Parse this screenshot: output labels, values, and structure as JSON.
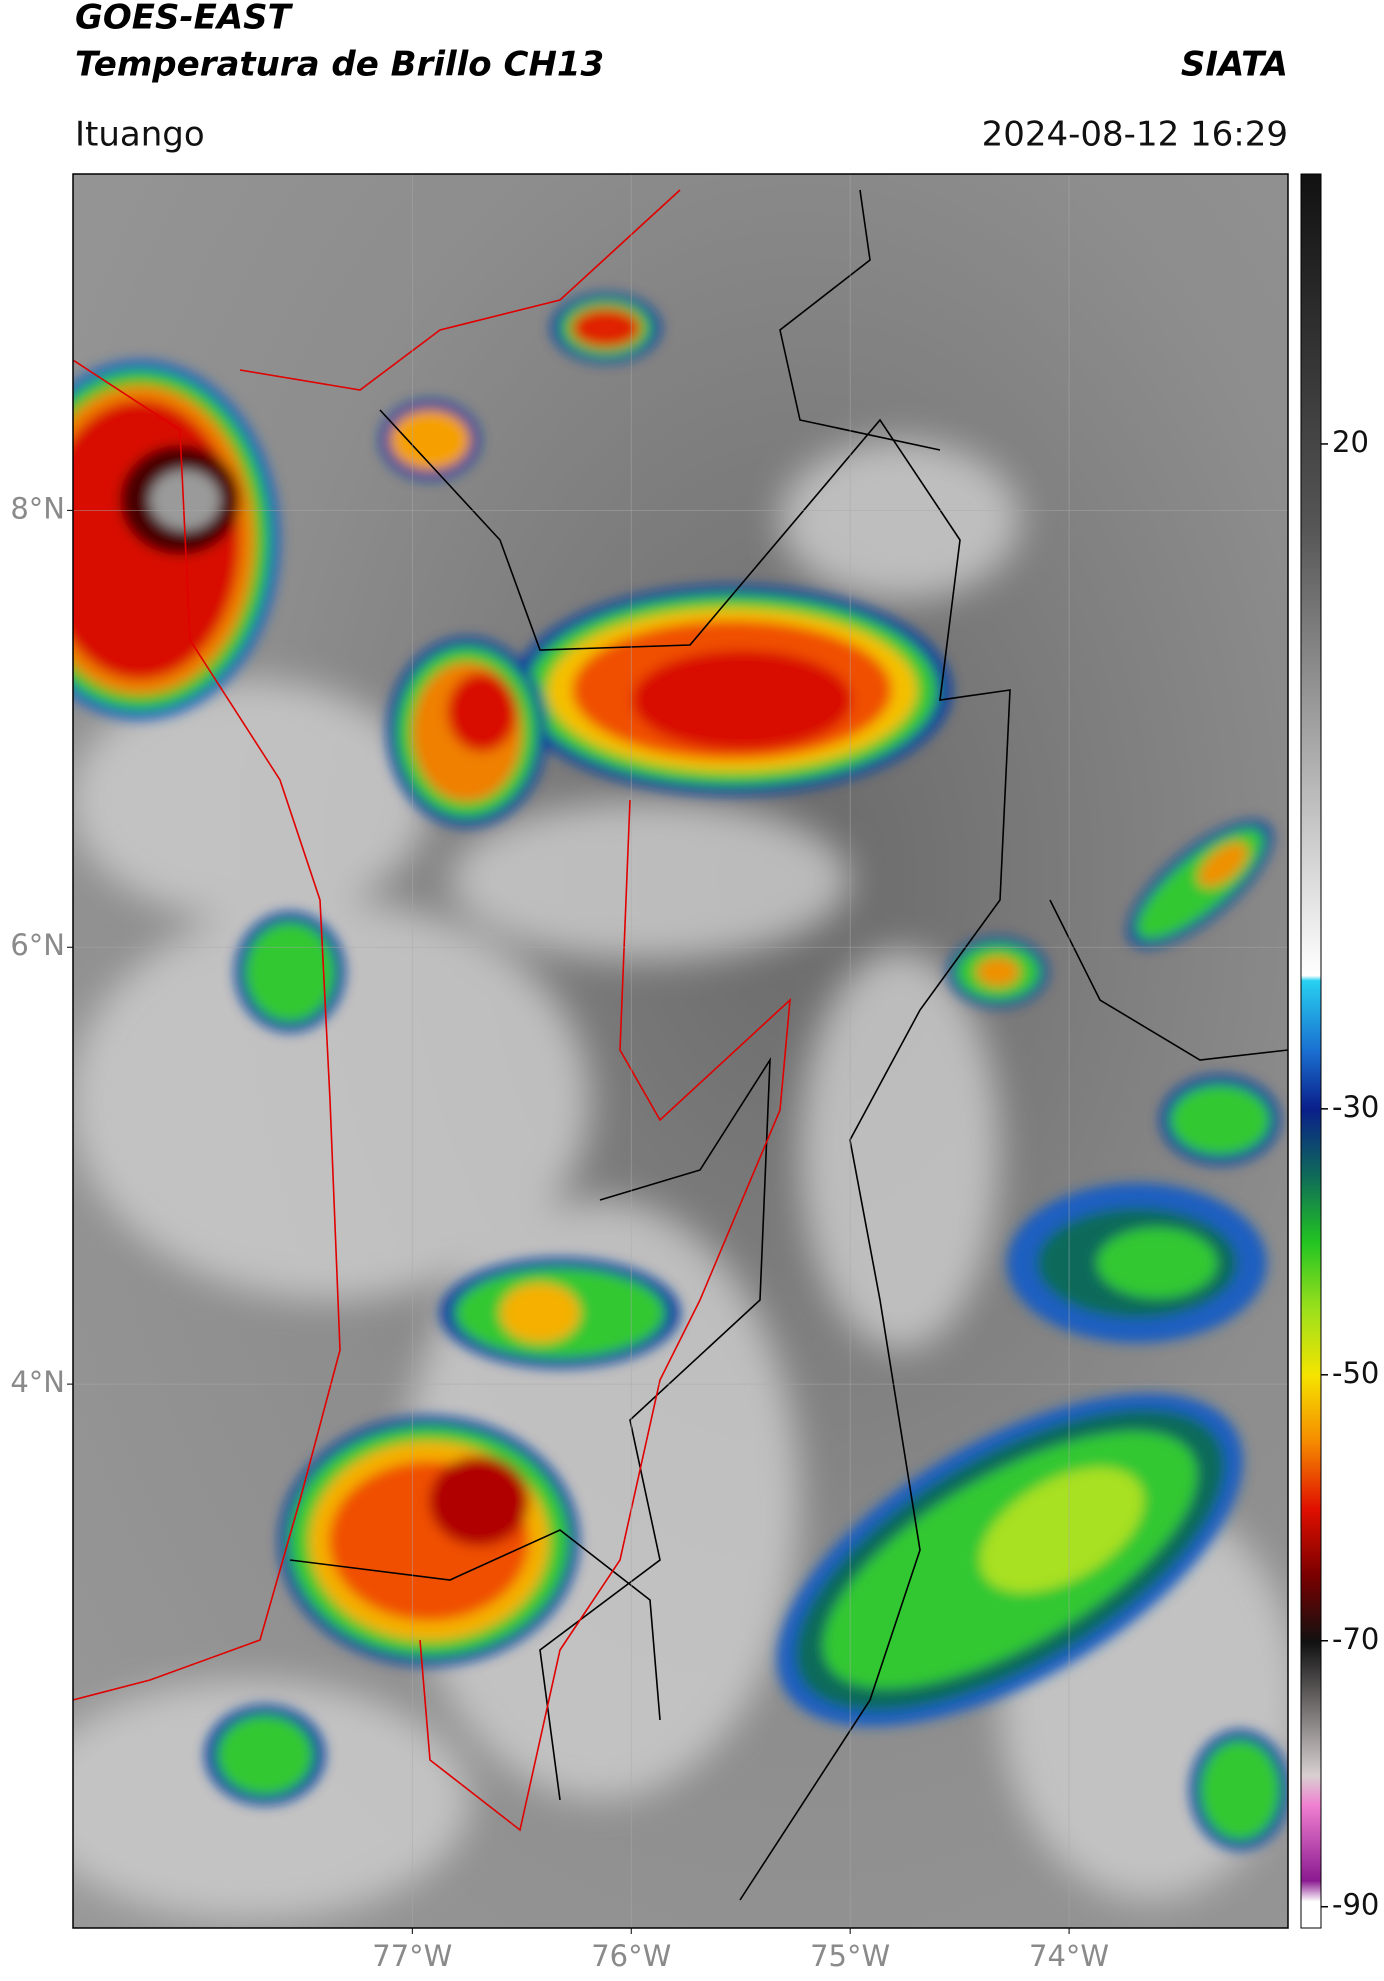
{
  "header": {
    "title": "GOES-EAST",
    "subtitle": "Temperatura de Brillo CH13",
    "source": "SIATA",
    "location": "Ituango",
    "datetime": "2024-08-12 16:29"
  },
  "map": {
    "xlim": [
      -78.55,
      -73.0
    ],
    "ylim": [
      1.51,
      9.54
    ],
    "xticks": [
      {
        "value": -77,
        "label": "77°W"
      },
      {
        "value": -76,
        "label": "76°W"
      },
      {
        "value": -75,
        "label": "75°W"
      },
      {
        "value": -74,
        "label": "74°W"
      }
    ],
    "yticks": [
      {
        "value": 8,
        "label": "8°N"
      },
      {
        "value": 6,
        "label": "6°N"
      },
      {
        "value": 4,
        "label": "4°N"
      }
    ],
    "grid": true
  },
  "colorbar": {
    "lim": [
      -91.6,
      40.3
    ],
    "ticks": [
      20,
      -30,
      -50,
      -70,
      -90
    ]
  }
}
